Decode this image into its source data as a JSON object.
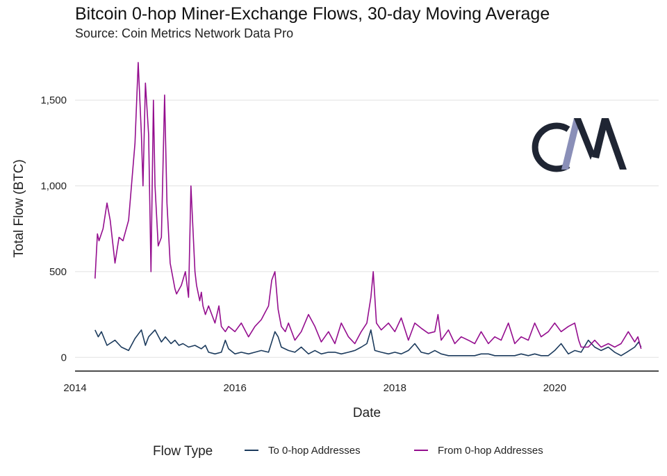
{
  "chart_data": {
    "type": "line",
    "title": "Bitcoin 0-hop Miner-Exchange Flows, 30-day Moving Average",
    "subtitle": "Source: Coin Metrics Network Data Pro",
    "xlabel": "Date",
    "ylabel": "Total Flow (BTC)",
    "xlim": [
      2014.0,
      2021.3
    ],
    "ylim": [
      -80,
      1760
    ],
    "x_ticks": [
      2014,
      2016,
      2018,
      2020
    ],
    "x_tick_labels": [
      "2014",
      "2016",
      "2018",
      "2020"
    ],
    "y_ticks": [
      0,
      500,
      1000,
      1500
    ],
    "y_tick_labels": [
      "0",
      "500",
      "1,000",
      "1,500"
    ],
    "grid": "horizontal",
    "legend": {
      "title": "Flow Type",
      "position": "bottom",
      "entries": [
        "To 0-hop Addresses",
        "From 0-hop Addresses"
      ]
    },
    "series": [
      {
        "name": "To 0-hop Addresses",
        "color": "#1b3a5c",
        "x": [
          2014.25,
          2014.29,
          2014.33,
          2014.4,
          2014.5,
          2014.58,
          2014.67,
          2014.75,
          2014.83,
          2014.88,
          2014.92,
          2015.0,
          2015.08,
          2015.13,
          2015.2,
          2015.25,
          2015.3,
          2015.35,
          2015.42,
          2015.5,
          2015.58,
          2015.63,
          2015.67,
          2015.75,
          2015.83,
          2015.88,
          2015.92,
          2016.0,
          2016.08,
          2016.17,
          2016.25,
          2016.33,
          2016.42,
          2016.5,
          2016.54,
          2016.58,
          2016.67,
          2016.75,
          2016.83,
          2016.92,
          2017.0,
          2017.08,
          2017.17,
          2017.25,
          2017.33,
          2017.42,
          2017.5,
          2017.58,
          2017.65,
          2017.7,
          2017.75,
          2017.83,
          2017.92,
          2018.0,
          2018.08,
          2018.17,
          2018.25,
          2018.33,
          2018.42,
          2018.5,
          2018.58,
          2018.67,
          2018.75,
          2018.83,
          2018.92,
          2019.0,
          2019.08,
          2019.17,
          2019.25,
          2019.33,
          2019.42,
          2019.5,
          2019.58,
          2019.67,
          2019.75,
          2019.83,
          2019.92,
          2020.0,
          2020.08,
          2020.17,
          2020.25,
          2020.33,
          2020.42,
          2020.5,
          2020.58,
          2020.67,
          2020.75,
          2020.83,
          2020.9,
          2021.0,
          2021.05,
          2021.08
        ],
        "values": [
          160,
          120,
          150,
          70,
          100,
          60,
          40,
          110,
          160,
          70,
          120,
          160,
          90,
          120,
          80,
          100,
          70,
          80,
          60,
          70,
          50,
          70,
          30,
          20,
          30,
          100,
          50,
          20,
          30,
          20,
          30,
          40,
          30,
          150,
          120,
          60,
          40,
          30,
          60,
          20,
          40,
          20,
          30,
          30,
          20,
          30,
          40,
          60,
          80,
          160,
          40,
          30,
          20,
          30,
          20,
          40,
          80,
          30,
          20,
          40,
          20,
          10,
          10,
          10,
          10,
          10,
          20,
          20,
          10,
          10,
          10,
          10,
          20,
          10,
          20,
          10,
          10,
          40,
          80,
          20,
          40,
          30,
          100,
          60,
          40,
          60,
          30,
          10,
          30,
          60,
          90,
          60
        ]
      },
      {
        "name": "From 0-hop Addresses",
        "color": "#940d8e",
        "x": [
          2014.25,
          2014.28,
          2014.3,
          2014.35,
          2014.4,
          2014.44,
          2014.5,
          2014.55,
          2014.6,
          2014.67,
          2014.75,
          2014.79,
          2014.83,
          2014.85,
          2014.88,
          2014.92,
          2014.95,
          2014.98,
          2015.0,
          2015.04,
          2015.08,
          2015.12,
          2015.15,
          2015.19,
          2015.25,
          2015.27,
          2015.33,
          2015.38,
          2015.42,
          2015.45,
          2015.5,
          2015.52,
          2015.56,
          2015.58,
          2015.6,
          2015.63,
          2015.67,
          2015.75,
          2015.8,
          2015.83,
          2015.88,
          2015.92,
          2016.0,
          2016.08,
          2016.17,
          2016.25,
          2016.33,
          2016.42,
          2016.46,
          2016.5,
          2016.54,
          2016.58,
          2016.63,
          2016.67,
          2016.75,
          2016.83,
          2016.92,
          2017.0,
          2017.08,
          2017.17,
          2017.25,
          2017.33,
          2017.42,
          2017.5,
          2017.58,
          2017.65,
          2017.7,
          2017.73,
          2017.77,
          2017.83,
          2017.92,
          2018.0,
          2018.08,
          2018.17,
          2018.25,
          2018.33,
          2018.42,
          2018.5,
          2018.54,
          2018.58,
          2018.67,
          2018.75,
          2018.83,
          2018.92,
          2019.0,
          2019.08,
          2019.17,
          2019.25,
          2019.33,
          2019.42,
          2019.5,
          2019.58,
          2019.67,
          2019.75,
          2019.83,
          2019.92,
          2020.0,
          2020.08,
          2020.17,
          2020.25,
          2020.3,
          2020.33,
          2020.42,
          2020.5,
          2020.58,
          2020.67,
          2020.75,
          2020.83,
          2020.92,
          2021.0,
          2021.04,
          2021.08
        ],
        "values": [
          460,
          720,
          680,
          750,
          900,
          800,
          550,
          700,
          680,
          800,
          1250,
          1720,
          1300,
          1000,
          1600,
          1300,
          500,
          1500,
          1000,
          650,
          700,
          1530,
          900,
          550,
          400,
          370,
          420,
          500,
          350,
          1000,
          500,
          420,
          330,
          380,
          300,
          250,
          300,
          200,
          300,
          180,
          150,
          180,
          150,
          200,
          120,
          180,
          220,
          300,
          450,
          500,
          280,
          180,
          150,
          200,
          100,
          150,
          250,
          180,
          90,
          150,
          80,
          200,
          120,
          80,
          150,
          200,
          350,
          500,
          200,
          160,
          200,
          150,
          230,
          100,
          200,
          170,
          140,
          150,
          250,
          100,
          160,
          80,
          120,
          100,
          80,
          150,
          80,
          120,
          100,
          200,
          80,
          120,
          100,
          200,
          120,
          150,
          200,
          150,
          180,
          200,
          100,
          60,
          60,
          100,
          60,
          80,
          60,
          80,
          150,
          90,
          120,
          50
        ]
      }
    ]
  },
  "logo": {
    "text": "CM",
    "colors": [
      "#1f2533",
      "#8a8fb8"
    ]
  }
}
